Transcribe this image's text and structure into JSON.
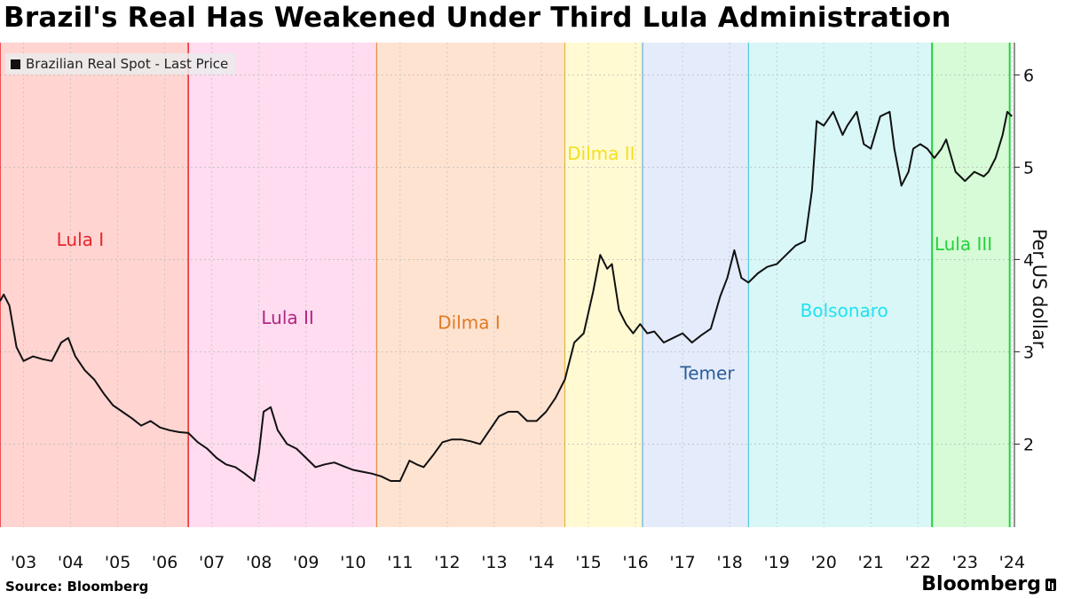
{
  "header": {
    "title": "Brazil's Real Has Weakened Under Third Lula Administration"
  },
  "footer": {
    "source": "Source: Bloomberg",
    "brand": "Bloomberg"
  },
  "chart_data": {
    "type": "line",
    "title": "Brazil's Real Has Weakened Under Third Lula Administration",
    "ylabel": "Per US dollar",
    "ylim": [
      1.1,
      6.35
    ],
    "xlim": [
      2003.0,
      2024.55
    ],
    "yticks": [
      2,
      3,
      4,
      5,
      6
    ],
    "xtick_labels": [
      "'03",
      "'04",
      "'05",
      "'06",
      "'07",
      "'08",
      "'09",
      "'10",
      "'11",
      "'12",
      "'13",
      "'14",
      "'15",
      "'16",
      "'17",
      "'18",
      "'19",
      "'20",
      "'21",
      "'22",
      "'23",
      "'24"
    ],
    "xtick_years": [
      2003.5,
      2004.5,
      2005.5,
      2006.5,
      2007.5,
      2008.5,
      2009.5,
      2010.5,
      2011.5,
      2012.5,
      2013.5,
      2014.5,
      2015.5,
      2016.5,
      2017.5,
      2018.5,
      2019.5,
      2020.5,
      2021.5,
      2022.5,
      2023.5,
      2024.5
    ],
    "grid": "dotted",
    "legend_position": "top-left",
    "series": [
      {
        "name": "Brazilian Real Spot - Last Price",
        "color": "#111111",
        "x": [
          2003.0,
          2003.08,
          2003.2,
          2003.35,
          2003.5,
          2003.7,
          2003.9,
          2004.1,
          2004.3,
          2004.45,
          2004.6,
          2004.8,
          2005.0,
          2005.2,
          2005.4,
          2005.6,
          2005.8,
          2006.0,
          2006.2,
          2006.4,
          2006.6,
          2006.8,
          2007.0,
          2007.2,
          2007.4,
          2007.6,
          2007.8,
          2008.0,
          2008.2,
          2008.4,
          2008.5,
          2008.6,
          2008.75,
          2008.9,
          2009.1,
          2009.3,
          2009.5,
          2009.7,
          2009.9,
          2010.1,
          2010.3,
          2010.5,
          2010.7,
          2010.9,
          2011.1,
          2011.3,
          2011.5,
          2011.7,
          2011.85,
          2012.0,
          2012.2,
          2012.4,
          2012.6,
          2012.8,
          2013.0,
          2013.2,
          2013.4,
          2013.6,
          2013.8,
          2014.0,
          2014.2,
          2014.4,
          2014.6,
          2014.8,
          2015.0,
          2015.2,
          2015.4,
          2015.6,
          2015.75,
          2015.9,
          2016.0,
          2016.15,
          2016.3,
          2016.45,
          2016.6,
          2016.75,
          2016.9,
          2017.1,
          2017.3,
          2017.5,
          2017.7,
          2017.9,
          2018.1,
          2018.3,
          2018.45,
          2018.6,
          2018.75,
          2018.9,
          2019.1,
          2019.3,
          2019.5,
          2019.7,
          2019.9,
          2020.1,
          2020.25,
          2020.35,
          2020.5,
          2020.7,
          2020.9,
          2021.0,
          2021.2,
          2021.35,
          2021.5,
          2021.7,
          2021.9,
          2022.0,
          2022.15,
          2022.3,
          2022.4,
          2022.55,
          2022.7,
          2022.85,
          2023.0,
          2023.1,
          2023.3,
          2023.5,
          2023.7,
          2023.9,
          2024.0,
          2024.15,
          2024.3,
          2024.4,
          2024.5
        ],
        "y": [
          3.55,
          3.62,
          3.5,
          3.05,
          2.9,
          2.95,
          2.92,
          2.9,
          3.1,
          3.15,
          2.95,
          2.8,
          2.7,
          2.55,
          2.42,
          2.35,
          2.28,
          2.2,
          2.25,
          2.18,
          2.15,
          2.13,
          2.12,
          2.02,
          1.95,
          1.85,
          1.78,
          1.75,
          1.68,
          1.6,
          1.9,
          2.35,
          2.4,
          2.15,
          2.0,
          1.95,
          1.85,
          1.75,
          1.78,
          1.8,
          1.76,
          1.72,
          1.7,
          1.68,
          1.65,
          1.6,
          1.6,
          1.82,
          1.78,
          1.75,
          1.88,
          2.02,
          2.05,
          2.05,
          2.03,
          2.0,
          2.15,
          2.3,
          2.35,
          2.35,
          2.25,
          2.25,
          2.35,
          2.5,
          2.7,
          3.1,
          3.2,
          3.65,
          4.05,
          3.9,
          3.95,
          3.45,
          3.3,
          3.2,
          3.3,
          3.2,
          3.22,
          3.1,
          3.15,
          3.2,
          3.1,
          3.18,
          3.25,
          3.6,
          3.8,
          4.1,
          3.8,
          3.75,
          3.85,
          3.92,
          3.95,
          4.05,
          4.15,
          4.2,
          4.75,
          5.5,
          5.45,
          5.6,
          5.35,
          5.45,
          5.6,
          5.25,
          5.2,
          5.55,
          5.6,
          5.2,
          4.8,
          4.95,
          5.2,
          5.25,
          5.2,
          5.1,
          5.2,
          5.3,
          4.95,
          4.85,
          4.95,
          4.9,
          4.95,
          5.1,
          5.35,
          5.6,
          5.55
        ]
      }
    ],
    "regimes": [
      {
        "label": "Lula I",
        "start": 2003.0,
        "end": 2007.0,
        "fill": "#ffd4d1",
        "line": "#e8242c",
        "text_color": "#e8242c",
        "label_x": 2004.2,
        "label_y": 4.15
      },
      {
        "label": "Lula II",
        "start": 2007.0,
        "end": 2011.0,
        "fill": "#ffdcf0",
        "line": "#e8242c",
        "text_color": "#b02680",
        "label_x": 2008.55,
        "label_y": 3.3
      },
      {
        "label": "Dilma I",
        "start": 2011.0,
        "end": 2015.0,
        "fill": "#ffe3d1",
        "line": "#e07a24",
        "text_color": "#e07a24",
        "label_x": 2012.3,
        "label_y": 3.25
      },
      {
        "label": "Dilma II",
        "start": 2015.0,
        "end": 2016.65,
        "fill": "#fffad2",
        "line": "#e0b024",
        "text_color": "#f2e021",
        "label_x": 2015.05,
        "label_y": 5.08
      },
      {
        "label": "Temer",
        "start": 2016.65,
        "end": 2018.9,
        "fill": "#e4ecfb",
        "line": "#4a9fd4",
        "text_color": "#2d5c99",
        "label_x": 2017.45,
        "label_y": 2.7
      },
      {
        "label": "Bolsonaro",
        "start": 2018.9,
        "end": 2022.8,
        "fill": "#d9f7f7",
        "line": "#37c2d6",
        "text_color": "#1fe3f0",
        "label_x": 2020.0,
        "label_y": 3.38
      },
      {
        "label": "Lula III",
        "start": 2022.8,
        "end": 2024.45,
        "fill": "#d6fbd6",
        "line": "#23d23c",
        "text_color": "#23d23c",
        "label_x": 2022.85,
        "label_y": 4.1
      }
    ]
  }
}
